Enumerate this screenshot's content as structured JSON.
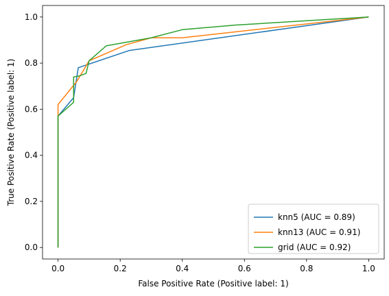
{
  "chart_data": {
    "type": "line",
    "title": "",
    "xlabel": "False Positive Rate (Positive label: 1)",
    "ylabel": "True Positive Rate (Positive label: 1)",
    "xlim": [
      -0.05,
      1.05
    ],
    "ylim": [
      -0.05,
      1.05
    ],
    "xticks": [
      0.0,
      0.2,
      0.4,
      0.6,
      0.8,
      1.0
    ],
    "yticks": [
      0.0,
      0.2,
      0.4,
      0.6,
      0.8,
      1.0
    ],
    "xtick_labels": [
      "0.0",
      "0.2",
      "0.4",
      "0.6",
      "0.8",
      "1.0"
    ],
    "ytick_labels": [
      "0.0",
      "0.2",
      "0.4",
      "0.6",
      "0.8",
      "1.0"
    ],
    "grid": false,
    "legend_position": "lower-right",
    "series": [
      {
        "name": "knn5 (AUC = 0.89)",
        "color": "#1f77b4",
        "x": [
          0.0,
          0.0,
          0.05,
          0.065,
          0.23,
          1.0
        ],
        "y": [
          0.0,
          0.57,
          0.65,
          0.78,
          0.855,
          1.0
        ]
      },
      {
        "name": "knn13 (AUC = 0.91)",
        "color": "#ff7f0e",
        "x": [
          0.0,
          0.0,
          0.06,
          0.1,
          0.22,
          0.3,
          0.4,
          1.0
        ],
        "y": [
          0.0,
          0.62,
          0.72,
          0.81,
          0.88,
          0.91,
          0.91,
          1.0
        ]
      },
      {
        "name": "grid (AUC = 0.92)",
        "color": "#2ca02c",
        "x": [
          0.0,
          0.0,
          0.05,
          0.05,
          0.07,
          0.09,
          0.1,
          0.155,
          0.3,
          0.4,
          0.57,
          1.0
        ],
        "y": [
          0.0,
          0.57,
          0.63,
          0.74,
          0.745,
          0.755,
          0.81,
          0.875,
          0.91,
          0.945,
          0.965,
          1.0
        ]
      }
    ]
  }
}
